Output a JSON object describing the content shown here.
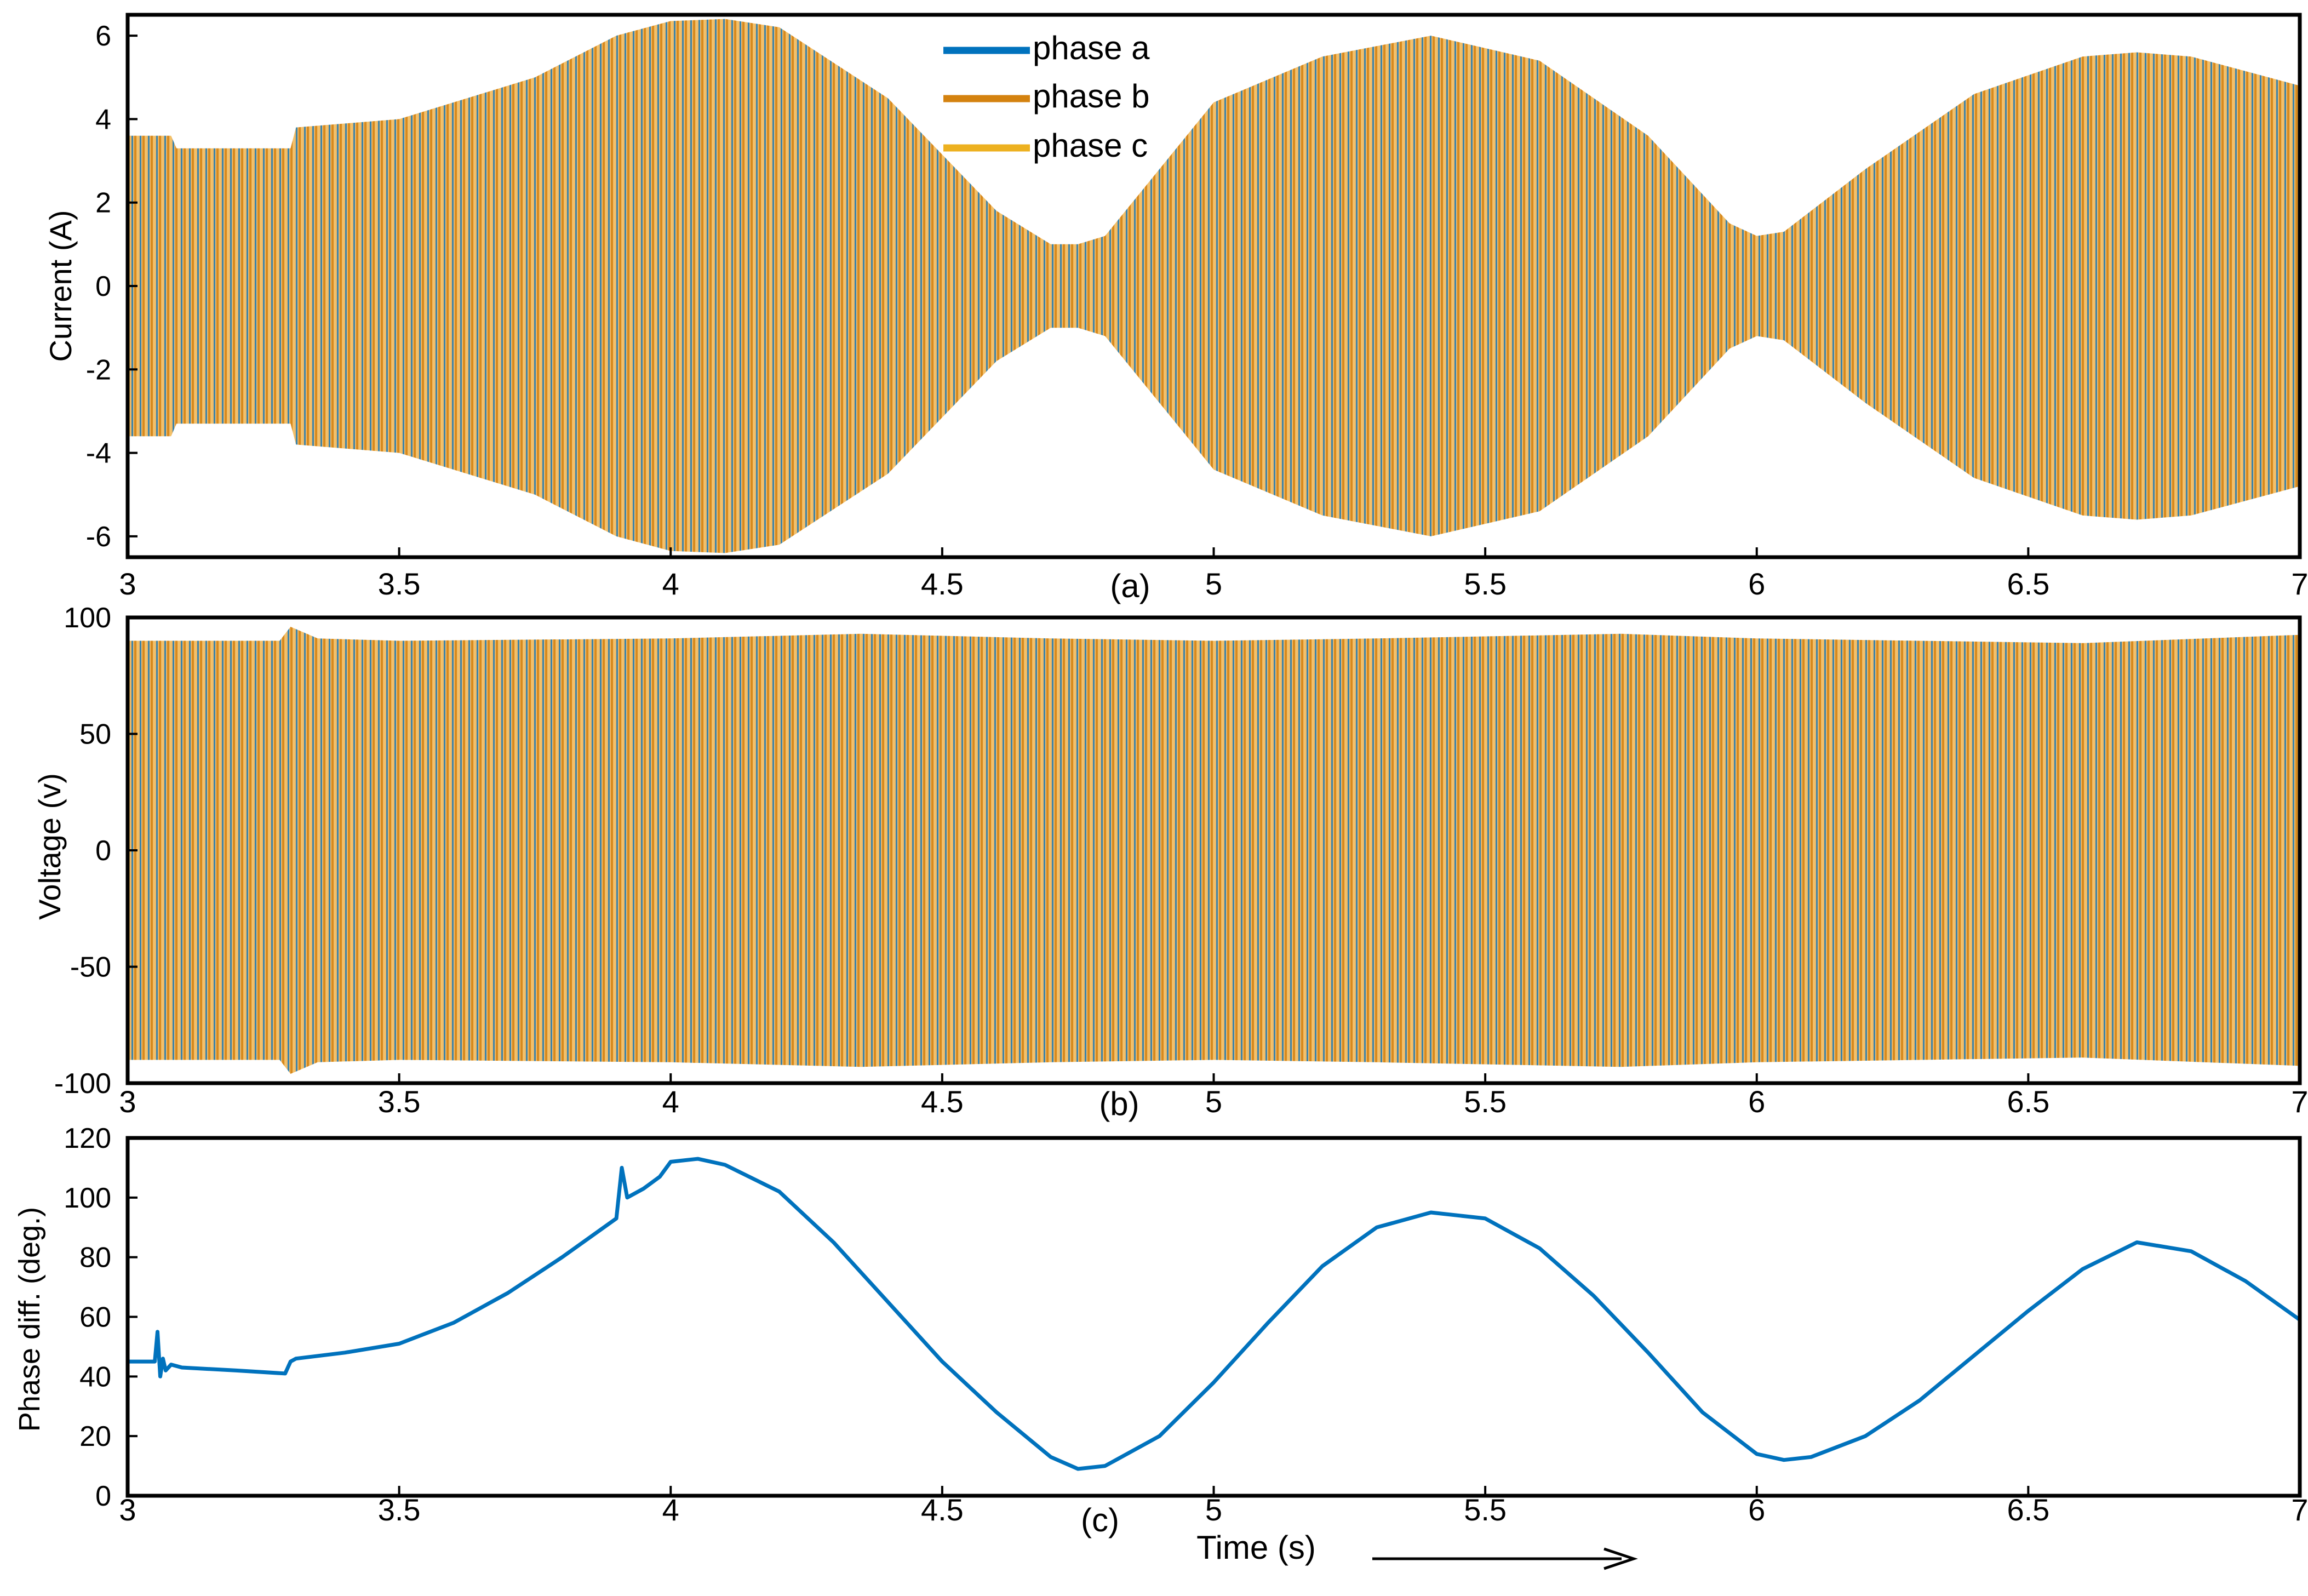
{
  "colors": {
    "phase_a": "#0072BD",
    "phase_b": "#D95319",
    "phase_b_line": "#D4820F",
    "phase_c": "#EDB120",
    "envelope_fill": "#EEB86A",
    "axes": "#000000",
    "background": "#FFFFFF"
  },
  "chart_data": [
    {
      "panel": "(a)",
      "type": "line",
      "title": "",
      "xlabel": "",
      "ylabel": "Current (A)",
      "xlim": [
        3,
        7
      ],
      "ylim": [
        -6.5,
        6.5
      ],
      "xticks": [
        "3",
        "3.5",
        "4",
        "4.5",
        "5",
        "5.5",
        "6",
        "6.5",
        "7"
      ],
      "xtick_values": [
        3,
        3.5,
        4,
        4.5,
        5,
        5.5,
        6,
        6.5,
        7
      ],
      "yticks": [
        "6",
        "4",
        "2",
        "0",
        "-2",
        "-4",
        "-6"
      ],
      "ytick_values": [
        6,
        4,
        2,
        0,
        -2,
        -4,
        -6
      ],
      "grid": false,
      "legend_position": "top-center",
      "series": [
        {
          "name": "phase a",
          "color": "#0072BD"
        },
        {
          "name": "phase b",
          "color": "#D4820F"
        },
        {
          "name": "phase c",
          "color": "#EDB120"
        }
      ],
      "envelope_peak": {
        "x": [
          3.0,
          3.08,
          3.09,
          3.3,
          3.31,
          3.5,
          3.75,
          3.9,
          4.0,
          4.1,
          4.2,
          4.4,
          4.6,
          4.7,
          4.75,
          4.8,
          4.9,
          5.0,
          5.2,
          5.4,
          5.6,
          5.8,
          5.95,
          6.0,
          6.05,
          6.2,
          6.4,
          6.6,
          6.7,
          6.8,
          7.0,
          7.05
        ],
        "y": [
          3.6,
          3.6,
          3.3,
          3.3,
          3.8,
          4.0,
          5.0,
          6.0,
          6.35,
          6.4,
          6.2,
          4.5,
          1.8,
          1.0,
          1.0,
          1.2,
          2.8,
          4.4,
          5.5,
          6.0,
          5.4,
          3.6,
          1.5,
          1.2,
          1.3,
          2.8,
          4.6,
          5.5,
          5.6,
          5.5,
          4.8,
          4.3
        ]
      }
    },
    {
      "panel": "(b)",
      "type": "line",
      "title": "",
      "xlabel": "",
      "ylabel": "Voltage (v)",
      "xlim": [
        3,
        7
      ],
      "ylim": [
        -100,
        100
      ],
      "xticks": [
        "3",
        "3.5",
        "4",
        "4.5",
        "5",
        "5.5",
        "6",
        "6.5",
        "7"
      ],
      "xtick_values": [
        3,
        3.5,
        4,
        4.5,
        5,
        5.5,
        6,
        6.5,
        7
      ],
      "yticks": [
        "100",
        "50",
        "0",
        "-50",
        "-100"
      ],
      "ytick_values": [
        100,
        50,
        0,
        -50,
        -100
      ],
      "grid": false,
      "series": [
        {
          "name": "phase a",
          "color": "#0072BD"
        },
        {
          "name": "phase b",
          "color": "#D4820F"
        },
        {
          "name": "phase c",
          "color": "#EDB120"
        }
      ],
      "envelope_peak": {
        "x": [
          3.0,
          3.28,
          3.3,
          3.35,
          3.5,
          4.0,
          4.35,
          4.7,
          5.0,
          5.3,
          5.75,
          6.0,
          6.6,
          7.05
        ],
        "y": [
          90,
          90,
          96,
          91,
          90,
          91,
          93,
          91,
          90,
          91,
          93,
          91,
          89,
          93
        ]
      }
    },
    {
      "panel": "(c)",
      "type": "line",
      "title": "",
      "xlabel": "Time (s)",
      "ylabel": "Phase diff. (deg.)",
      "xlim": [
        3,
        7
      ],
      "ylim": [
        0,
        120
      ],
      "xticks": [
        "3",
        "3.5",
        "4",
        "4.5",
        "5",
        "5.5",
        "6",
        "6.5",
        "7"
      ],
      "xtick_values": [
        3,
        3.5,
        4,
        4.5,
        5,
        5.5,
        6,
        6.5,
        7
      ],
      "yticks": [
        "120",
        "100",
        "80",
        "60",
        "40",
        "20",
        "0"
      ],
      "ytick_values": [
        120,
        100,
        80,
        60,
        40,
        20,
        0
      ],
      "grid": false,
      "series": [
        {
          "name": "",
          "color": "#0072BD",
          "x": [
            3.0,
            3.05,
            3.055,
            3.06,
            3.065,
            3.07,
            3.08,
            3.1,
            3.2,
            3.29,
            3.3,
            3.31,
            3.4,
            3.5,
            3.6,
            3.7,
            3.8,
            3.9,
            3.91,
            3.92,
            3.95,
            3.98,
            4.0,
            4.05,
            4.1,
            4.2,
            4.3,
            4.4,
            4.5,
            4.6,
            4.7,
            4.75,
            4.8,
            4.9,
            5.0,
            5.1,
            5.2,
            5.3,
            5.4,
            5.5,
            5.6,
            5.7,
            5.8,
            5.9,
            6.0,
            6.05,
            6.1,
            6.2,
            6.3,
            6.4,
            6.5,
            6.6,
            6.7,
            6.8,
            6.9,
            7.0,
            7.05
          ],
          "y": [
            45,
            45,
            55,
            40,
            46,
            42,
            44,
            43,
            42,
            41,
            45,
            46,
            48,
            51,
            58,
            68,
            80,
            93,
            110,
            100,
            103,
            107,
            112,
            113,
            111,
            102,
            85,
            65,
            45,
            28,
            13,
            9,
            10,
            20,
            38,
            58,
            77,
            90,
            95,
            93,
            83,
            67,
            48,
            28,
            14,
            12,
            13,
            20,
            32,
            47,
            62,
            76,
            85,
            82,
            72,
            59,
            50
          ]
        }
      ]
    }
  ],
  "panel_labels": [
    "(a)",
    "(b)",
    "(c)"
  ],
  "arrow_label": ""
}
